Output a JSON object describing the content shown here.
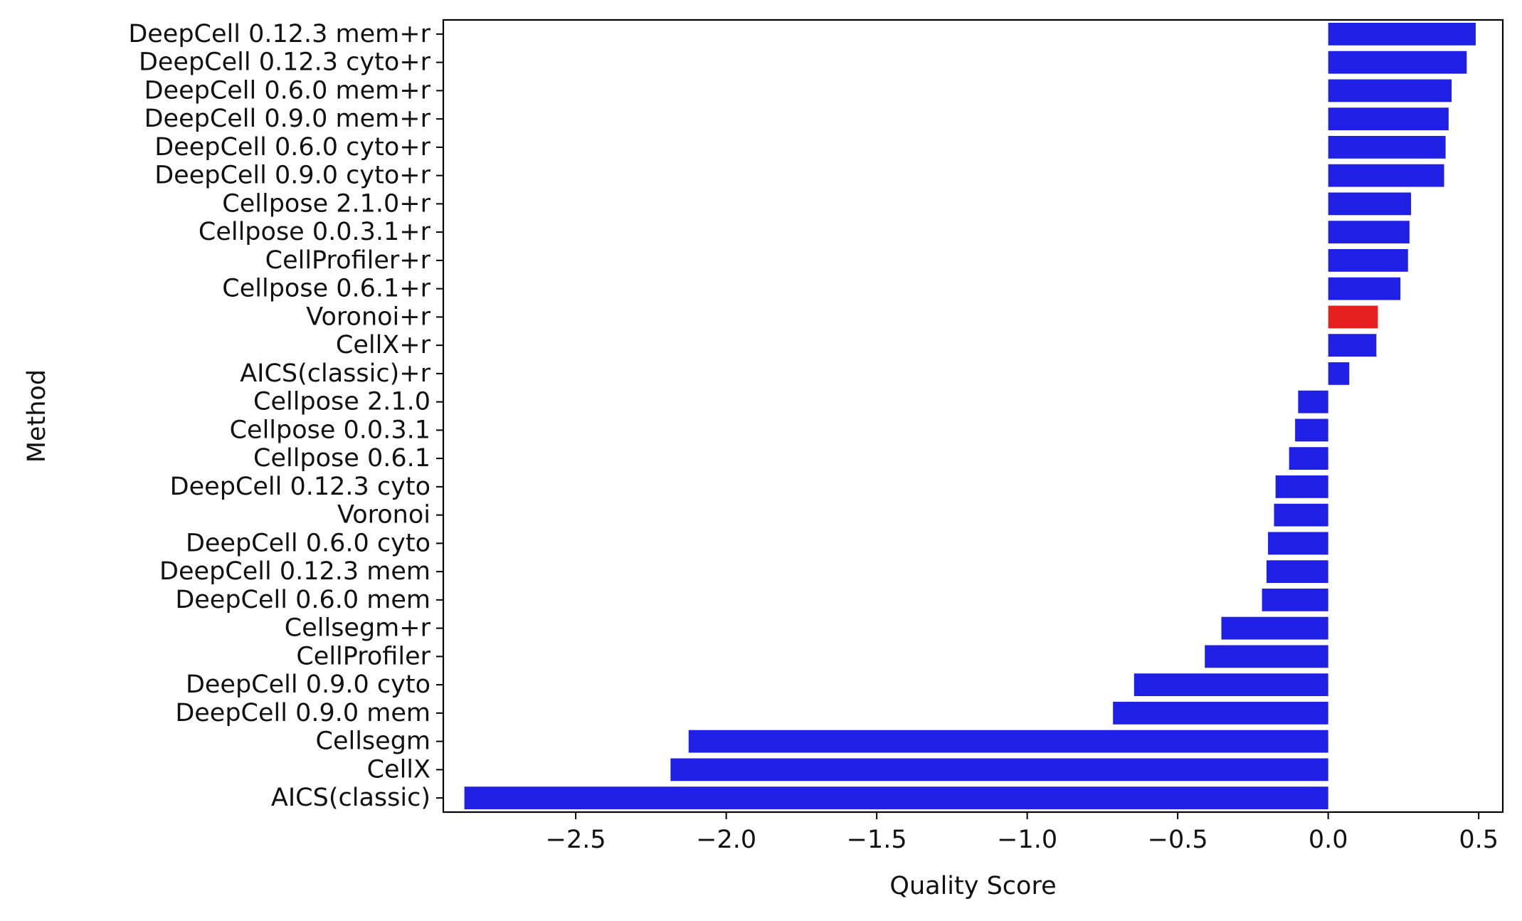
{
  "chart_data": {
    "type": "bar",
    "orientation": "horizontal",
    "xlabel": "Quality Score",
    "ylabel": "Method",
    "xlim": [
      -2.94,
      0.58
    ],
    "xticks": [
      -2.5,
      -2.0,
      -1.5,
      -1.0,
      -0.5,
      0.0,
      0.5
    ],
    "xtick_labels": [
      "−2.5",
      "−2.0",
      "−1.5",
      "−1.0",
      "−0.5",
      "0.0",
      "0.5"
    ],
    "grid": false,
    "colors": {
      "default": "#1f1fe6",
      "highlight": "#e61f1f"
    },
    "highlight": "Voronoi+r",
    "categories": [
      "DeepCell 0.12.3 mem+r",
      "DeepCell 0.12.3 cyto+r",
      "DeepCell 0.6.0 mem+r",
      "DeepCell 0.9.0 mem+r",
      "DeepCell 0.6.0 cyto+r",
      "DeepCell 0.9.0 cyto+r",
      "Cellpose 2.1.0+r",
      "Cellpose 0.0.3.1+r",
      "CellProfiler+r",
      "Cellpose 0.6.1+r",
      "Voronoi+r",
      "CellX+r",
      "AICS(classic)+r",
      "Cellpose 2.1.0",
      "Cellpose 0.0.3.1",
      "Cellpose 0.6.1",
      "DeepCell 0.12.3 cyto",
      "Voronoi",
      "DeepCell 0.6.0 cyto",
      "DeepCell 0.12.3 mem",
      "DeepCell 0.6.0 mem",
      "Cellsegm+r",
      "CellProfiler",
      "DeepCell 0.9.0 cyto",
      "DeepCell 0.9.0 mem",
      "Cellsegm",
      "CellX",
      "AICS(classic)"
    ],
    "values": [
      0.49,
      0.46,
      0.41,
      0.4,
      0.39,
      0.385,
      0.275,
      0.27,
      0.265,
      0.24,
      0.165,
      0.16,
      0.07,
      -0.1,
      -0.11,
      -0.13,
      -0.175,
      -0.18,
      -0.2,
      -0.205,
      -0.22,
      -0.355,
      -0.41,
      -0.645,
      -0.715,
      -2.125,
      -2.185,
      -2.87
    ]
  }
}
